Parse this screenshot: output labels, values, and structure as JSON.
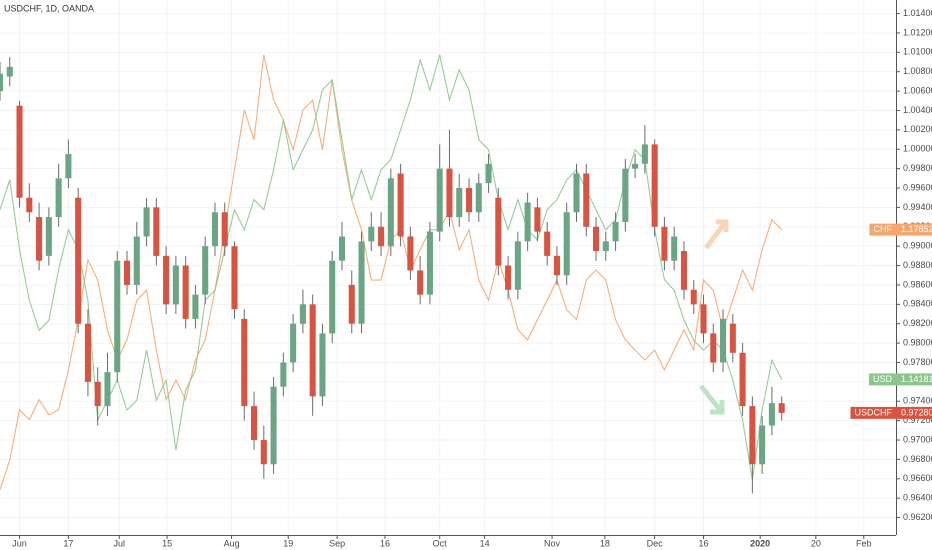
{
  "chart_data": {
    "type": "candlestick",
    "title": "USDCHF, 1D, OANDA",
    "grid": true,
    "xlim": [
      -2,
      89.7
    ],
    "xticks": [
      {
        "value": 0,
        "label": "Jun"
      },
      {
        "value": 5,
        "label": "17"
      },
      {
        "value": 10.2,
        "label": "Jul"
      },
      {
        "value": 15.1,
        "label": "15"
      },
      {
        "value": 21.7,
        "label": "Aug"
      },
      {
        "value": 27.5,
        "label": "19"
      },
      {
        "value": 32.5,
        "label": "Sep"
      },
      {
        "value": 37.4,
        "label": "16"
      },
      {
        "value": 43,
        "label": "Oct"
      },
      {
        "value": 47.6,
        "label": "14"
      },
      {
        "value": 54.5,
        "label": "Nov"
      },
      {
        "value": 59.9,
        "label": "18"
      },
      {
        "value": 65,
        "label": "Dec"
      },
      {
        "value": 70,
        "label": "16"
      },
      {
        "value": 75.8,
        "label": "2020",
        "bold": true
      },
      {
        "value": 81.5,
        "label": "20"
      },
      {
        "value": 86.4,
        "label": "Feb"
      }
    ],
    "ylim": [
      0.9602,
      1.0154
    ],
    "yticks": [
      {
        "value": 0.962,
        "label": "0.96200"
      },
      {
        "value": 0.964,
        "label": "0.96400"
      },
      {
        "value": 0.966,
        "label": "0.96600"
      },
      {
        "value": 0.968,
        "label": "0.96800"
      },
      {
        "value": 0.97,
        "label": "0.97000"
      },
      {
        "value": 0.972,
        "label": "0.97200"
      },
      {
        "value": 0.974,
        "label": "0.97400"
      },
      {
        "value": 0.976,
        "label": "0.97600"
      },
      {
        "value": 0.978,
        "label": "0.97800"
      },
      {
        "value": 0.98,
        "label": "0.98000"
      },
      {
        "value": 0.982,
        "label": "0.98200"
      },
      {
        "value": 0.984,
        "label": "0.98400"
      },
      {
        "value": 0.986,
        "label": "0.98600"
      },
      {
        "value": 0.988,
        "label": "0.98800"
      },
      {
        "value": 0.99,
        "label": "0.99000"
      },
      {
        "value": 0.992,
        "label": "0.99200"
      },
      {
        "value": 0.994,
        "label": "0.99400"
      },
      {
        "value": 0.996,
        "label": "0.99600"
      },
      {
        "value": 0.998,
        "label": "0.99800"
      },
      {
        "value": 1,
        "label": "1.00000"
      },
      {
        "value": 1.002,
        "label": "1.00200"
      },
      {
        "value": 1.004,
        "label": "1.00400"
      },
      {
        "value": 1.006,
        "label": "1.00600"
      },
      {
        "value": 1.008,
        "label": "1.00800"
      },
      {
        "value": 1.01,
        "label": "1.01000"
      },
      {
        "value": 1.012,
        "label": "1.01200"
      },
      {
        "value": 1.014,
        "label": "1.01400"
      }
    ],
    "x": [
      -2,
      -1,
      0,
      1,
      2,
      3,
      4,
      5,
      6,
      7,
      8,
      9,
      10,
      11,
      12,
      13,
      14,
      15,
      16,
      17,
      18,
      19,
      20,
      21,
      22,
      23,
      24,
      25,
      26,
      27,
      28,
      29,
      30,
      31,
      32,
      33,
      34,
      35,
      36,
      37,
      38,
      39,
      40,
      41,
      42,
      43,
      44,
      45,
      46,
      47,
      48,
      49,
      50,
      51,
      52,
      53,
      54,
      55,
      56,
      57,
      58,
      59,
      60,
      61,
      62,
      63,
      64,
      65,
      66,
      67,
      68,
      69,
      70,
      71,
      72,
      73,
      74,
      75,
      76,
      77,
      78
    ],
    "candles": {
      "name": "USDCHF",
      "up_color": "#6ba583",
      "down_color": "#d75442",
      "last_label": "0.97280",
      "open": [
        1.006,
        1.0075,
        1.0045,
        0.995,
        0.993,
        0.989,
        0.993,
        0.997,
        0.995,
        0.982,
        0.976,
        0.9735,
        0.977,
        0.9885,
        0.986,
        0.991,
        0.994,
        0.989,
        0.984,
        0.988,
        0.9825,
        0.985,
        0.99,
        0.9935,
        0.99,
        0.9825,
        0.9735,
        0.97,
        0.9675,
        0.9755,
        0.978,
        0.982,
        0.984,
        0.9745,
        0.981,
        0.9885,
        0.986,
        0.982,
        0.9905,
        0.992,
        0.99,
        0.9975,
        0.991,
        0.9875,
        0.985,
        0.9915,
        0.998,
        0.993,
        0.996,
        0.9935,
        0.9965,
        0.995,
        0.988,
        0.9855,
        0.9905,
        0.994,
        0.9915,
        0.989,
        0.987,
        0.9935,
        0.9975,
        0.992,
        0.9895,
        0.9905,
        0.9925,
        0.998,
        0.9985,
        1.0005,
        0.992,
        0.9885,
        0.9895,
        0.9855,
        0.984,
        0.981,
        0.978,
        0.982,
        0.979,
        0.9735,
        0.9675,
        0.9715,
        0.9738
      ],
      "high": [
        1.009,
        1.0095,
        1.005,
        0.9965,
        0.9945,
        0.994,
        0.9985,
        1.001,
        0.996,
        0.9835,
        0.9775,
        0.979,
        0.9895,
        0.9895,
        0.9925,
        0.995,
        0.995,
        0.99,
        0.989,
        0.989,
        0.986,
        0.991,
        0.9945,
        0.9945,
        0.9905,
        0.9835,
        0.975,
        0.9715,
        0.9765,
        0.979,
        0.983,
        0.9855,
        0.985,
        0.982,
        0.9895,
        0.9925,
        0.9875,
        0.9915,
        0.9935,
        0.9935,
        0.998,
        0.9985,
        0.992,
        0.989,
        0.9925,
        1.0005,
        1.002,
        0.9975,
        0.997,
        0.9975,
        0.9995,
        0.996,
        0.989,
        0.9915,
        0.9955,
        0.995,
        0.9925,
        0.99,
        0.9945,
        0.9985,
        0.9985,
        0.993,
        0.9915,
        0.9935,
        0.999,
        0.9995,
        1.0025,
        1.001,
        0.993,
        0.992,
        0.9905,
        0.9865,
        0.985,
        0.982,
        0.9835,
        0.983,
        0.98,
        0.9745,
        0.9725,
        0.9755,
        0.9745
      ],
      "low": [
        1.005,
        1.0065,
        0.994,
        0.9925,
        0.9875,
        0.988,
        0.992,
        0.996,
        0.981,
        0.9745,
        0.9715,
        0.9725,
        0.976,
        0.985,
        0.985,
        0.99,
        0.988,
        0.983,
        0.983,
        0.9815,
        0.9815,
        0.984,
        0.989,
        0.989,
        0.9825,
        0.972,
        0.969,
        0.966,
        0.9665,
        0.9745,
        0.977,
        0.981,
        0.9725,
        0.9735,
        0.98,
        0.9875,
        0.981,
        0.981,
        0.9895,
        0.989,
        0.989,
        0.99,
        0.9865,
        0.984,
        0.984,
        0.9905,
        0.992,
        0.992,
        0.9925,
        0.9925,
        0.9955,
        0.987,
        0.9845,
        0.9845,
        0.9895,
        0.9905,
        0.988,
        0.986,
        0.986,
        0.9925,
        0.991,
        0.9885,
        0.9885,
        0.9895,
        0.9915,
        0.997,
        0.9975,
        0.991,
        0.9875,
        0.9875,
        0.9845,
        0.983,
        0.98,
        0.977,
        0.977,
        0.978,
        0.9725,
        0.9645,
        0.9665,
        0.9705,
        0.972
      ],
      "close": [
        1.0078,
        1.0085,
        0.995,
        0.9935,
        0.9885,
        0.993,
        0.997,
        0.9995,
        0.982,
        0.976,
        0.9735,
        0.977,
        0.9885,
        0.986,
        0.991,
        0.994,
        0.989,
        0.984,
        0.988,
        0.9825,
        0.985,
        0.99,
        0.9935,
        0.99,
        0.9835,
        0.9735,
        0.97,
        0.9675,
        0.9755,
        0.978,
        0.982,
        0.984,
        0.9745,
        0.981,
        0.9885,
        0.991,
        0.982,
        0.9905,
        0.992,
        0.99,
        0.997,
        0.991,
        0.9875,
        0.985,
        0.9915,
        0.998,
        0.993,
        0.996,
        0.9935,
        0.9965,
        0.9985,
        0.988,
        0.9855,
        0.9905,
        0.9945,
        0.9915,
        0.989,
        0.987,
        0.9935,
        0.9975,
        0.992,
        0.9895,
        0.9905,
        0.9925,
        0.998,
        0.9985,
        1.0005,
        0.992,
        0.9885,
        0.991,
        0.9855,
        0.984,
        0.981,
        0.978,
        0.9825,
        0.979,
        0.9735,
        0.9675,
        0.9715,
        0.9738,
        0.9728
      ]
    },
    "series": [
      {
        "name": "CHF",
        "color": "#f4a66c",
        "ylim": [
          1.13,
          1.215
        ],
        "values": [
          1.1372,
          1.1419,
          1.1499,
          1.1483,
          1.1515,
          1.1491,
          1.1499,
          1.1562,
          1.1642,
          1.1737,
          1.1705,
          1.1626,
          1.1578,
          1.161,
          1.1673,
          1.1689,
          1.1594,
          1.1515,
          1.1546,
          1.1515,
          1.1578,
          1.161,
          1.1689,
          1.1785,
          1.188,
          1.1975,
          1.1928,
          1.2063,
          1.1991,
          1.1959,
          1.1912,
          1.1975,
          1.1991,
          1.1912,
          1.2023,
          1.1912,
          1.1832,
          1.1785,
          1.1705,
          1.1705,
          1.1769,
          1.1785,
          1.1721,
          1.1753,
          1.1785,
          1.1785,
          1.1816,
          1.1753,
          1.1785,
          1.1705,
          1.1673,
          1.1737,
          1.1689,
          1.1626,
          1.161,
          1.1642,
          1.1673,
          1.1705,
          1.1658,
          1.1642,
          1.1705,
          1.1721,
          1.1705,
          1.1642,
          1.161,
          1.1594,
          1.1578,
          1.1594,
          1.1562,
          1.1594,
          1.1626,
          1.1594,
          1.1705,
          1.1689,
          1.1626,
          1.1673,
          1.1721,
          1.1689,
          1.1753,
          1.1801,
          1.17852
        ]
      },
      {
        "name": "USD",
        "color": "#8cc68c",
        "ylim": [
          1.12,
          1.195
        ],
        "values": [
          1.1656,
          1.1698,
          1.16,
          1.1529,
          1.1487,
          1.1501,
          1.1572,
          1.1628,
          1.16,
          1.1529,
          1.1361,
          1.1389,
          1.1417,
          1.1375,
          1.1389,
          1.1459,
          1.1389,
          1.1417,
          1.1319,
          1.1403,
          1.1431,
          1.1529,
          1.1543,
          1.16,
          1.1656,
          1.1628,
          1.167,
          1.1656,
          1.1712,
          1.1782,
          1.1712,
          1.174,
          1.1768,
          1.1824,
          1.1838,
          1.1754,
          1.167,
          1.1712,
          1.167,
          1.1712,
          1.1726,
          1.1768,
          1.181,
          1.1866,
          1.1824,
          1.1873,
          1.181,
          1.1852,
          1.1824,
          1.1754,
          1.174,
          1.167,
          1.1628,
          1.167,
          1.1628,
          1.1614,
          1.1656,
          1.167,
          1.1698,
          1.1712,
          1.1684,
          1.1656,
          1.1628,
          1.1642,
          1.1698,
          1.174,
          1.1726,
          1.1628,
          1.1558,
          1.1543,
          1.1501,
          1.1473,
          1.1459,
          1.1473,
          1.1459,
          1.1417,
          1.1361,
          1.1277,
          1.1375,
          1.1445,
          1.14181
        ]
      }
    ]
  }
}
